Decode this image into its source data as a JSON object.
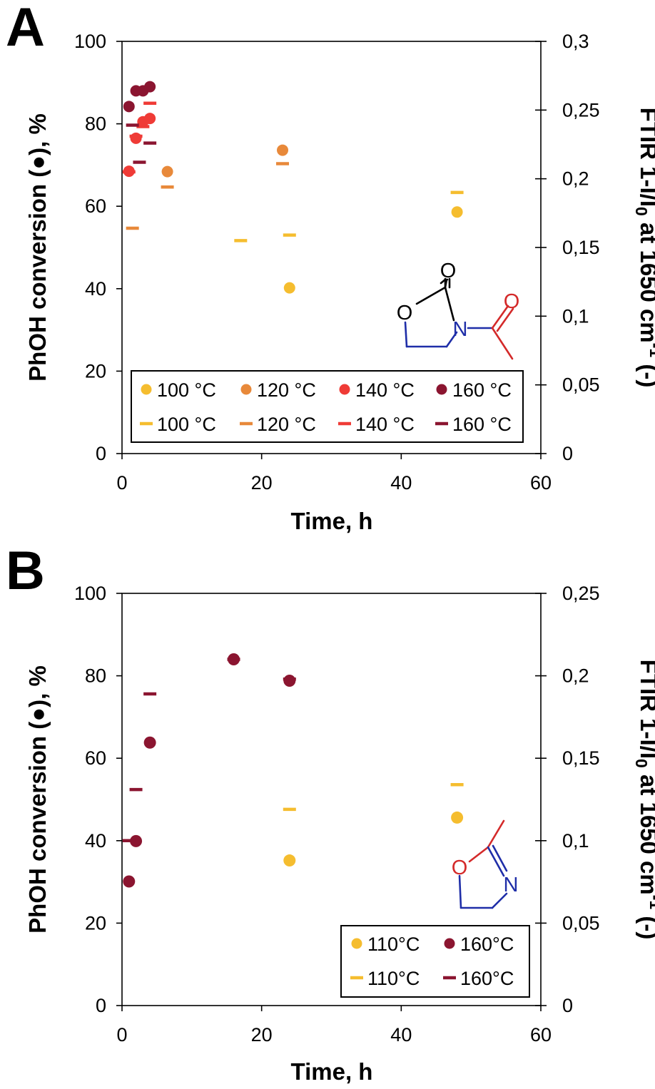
{
  "colors": {
    "100": "#f5bd2f",
    "110": "#f5bd2f",
    "120": "#e8893a",
    "140": "#ef3b36",
    "160": "#8b1530",
    "blue": "#1f2ea8",
    "red": "#d42a2a"
  },
  "chart_data": [
    {
      "panel": "A",
      "type": "scatter",
      "xlabel": "Time, h",
      "ylabel": "PhOH conversion (●), %",
      "y2label": "FTIR 1-I/I0 at 1650 cm-1 (-)",
      "xlim": [
        0,
        60
      ],
      "ylim": [
        0,
        100
      ],
      "y2lim": [
        0,
        0.3
      ],
      "x_ticks": [
        "0",
        "20",
        "40",
        "60"
      ],
      "y_ticks": [
        "0",
        "20",
        "40",
        "60",
        "80",
        "100"
      ],
      "y2_ticks": [
        "0",
        "0,05",
        "0,1",
        "0,15",
        "0,2",
        "0,25",
        "0,3"
      ],
      "legend": [
        {
          "marker": "circle",
          "label": "100 °C",
          "color_key": "100"
        },
        {
          "marker": "circle",
          "label": "120 °C",
          "color_key": "120"
        },
        {
          "marker": "circle",
          "label": "140 °C",
          "color_key": "140"
        },
        {
          "marker": "circle",
          "label": "160 °C",
          "color_key": "160"
        },
        {
          "marker": "dash",
          "label": "100 °C",
          "color_key": "100"
        },
        {
          "marker": "dash",
          "label": "120 °C",
          "color_key": "120"
        },
        {
          "marker": "dash",
          "label": "140 °C",
          "color_key": "140"
        },
        {
          "marker": "dash",
          "label": "160 °C",
          "color_key": "160"
        }
      ],
      "series": [
        {
          "axis": "left",
          "marker": "circle",
          "color_key": "100",
          "x": [
            24,
            48
          ],
          "y": [
            40.2,
            58.6
          ]
        },
        {
          "axis": "right",
          "marker": "dash",
          "color_key": "100",
          "x": [
            17,
            24,
            48
          ],
          "y": [
            0.155,
            0.159,
            0.19
          ]
        },
        {
          "axis": "left",
          "marker": "circle",
          "color_key": "120",
          "x": [
            6.5,
            23
          ],
          "y": [
            68.4,
            73.6
          ]
        },
        {
          "axis": "right",
          "marker": "dash",
          "color_key": "120",
          "x": [
            1.5,
            6.5,
            23
          ],
          "y": [
            0.164,
            0.194,
            0.211
          ]
        },
        {
          "axis": "left",
          "marker": "circle",
          "color_key": "140",
          "x": [
            1,
            2,
            3,
            4
          ],
          "y": [
            68.5,
            76.5,
            80.5,
            81.3
          ]
        },
        {
          "axis": "right",
          "marker": "dash",
          "color_key": "140",
          "x": [
            1,
            2,
            3,
            4
          ],
          "y": [
            0.205,
            0.231,
            0.238,
            0.255
          ]
        },
        {
          "axis": "left",
          "marker": "circle",
          "color_key": "160",
          "x": [
            1,
            2,
            3,
            4
          ],
          "y": [
            84.2,
            88.0,
            88.0,
            89.0
          ]
        },
        {
          "axis": "right",
          "marker": "dash",
          "color_key": "160",
          "x": [
            1.5,
            2.5,
            4
          ],
          "y": [
            0.239,
            0.212,
            0.226
          ]
        }
      ]
    },
    {
      "panel": "B",
      "type": "scatter",
      "xlabel": "Time, h",
      "ylabel": "PhOH conversion (●), %",
      "y2label": "FTIR 1-I/I0 at 1650 cm-1 (-)",
      "xlim": [
        0,
        60
      ],
      "ylim": [
        0,
        100
      ],
      "y2lim": [
        0,
        0.25
      ],
      "x_ticks": [
        "0",
        "20",
        "40",
        "60"
      ],
      "y_ticks": [
        "0",
        "20",
        "40",
        "60",
        "80",
        "100"
      ],
      "y2_ticks": [
        "0",
        "0,05",
        "0,1",
        "0,15",
        "0,2",
        "0,25"
      ],
      "legend": [
        {
          "marker": "circle",
          "label": "110°C",
          "color_key": "110"
        },
        {
          "marker": "circle",
          "label": "160°C",
          "color_key": "160"
        },
        {
          "marker": "dash",
          "label": "110°C",
          "color_key": "110"
        },
        {
          "marker": "dash",
          "label": "160°C",
          "color_key": "160"
        }
      ],
      "series": [
        {
          "axis": "left",
          "marker": "circle",
          "color_key": "110",
          "x": [
            24,
            48
          ],
          "y": [
            35.2,
            45.6
          ]
        },
        {
          "axis": "right",
          "marker": "dash",
          "color_key": "110",
          "x": [
            24,
            48
          ],
          "y": [
            0.119,
            0.134
          ]
        },
        {
          "axis": "left",
          "marker": "circle",
          "color_key": "160",
          "x": [
            1,
            2,
            4,
            16,
            24
          ],
          "y": [
            30.1,
            39.9,
            63.8,
            84.0,
            78.8
          ]
        },
        {
          "axis": "right",
          "marker": "dash",
          "color_key": "160",
          "x": [
            1,
            2,
            4,
            16,
            24
          ],
          "y": [
            0.1,
            0.131,
            0.189,
            0.21,
            0.198
          ]
        }
      ]
    }
  ]
}
